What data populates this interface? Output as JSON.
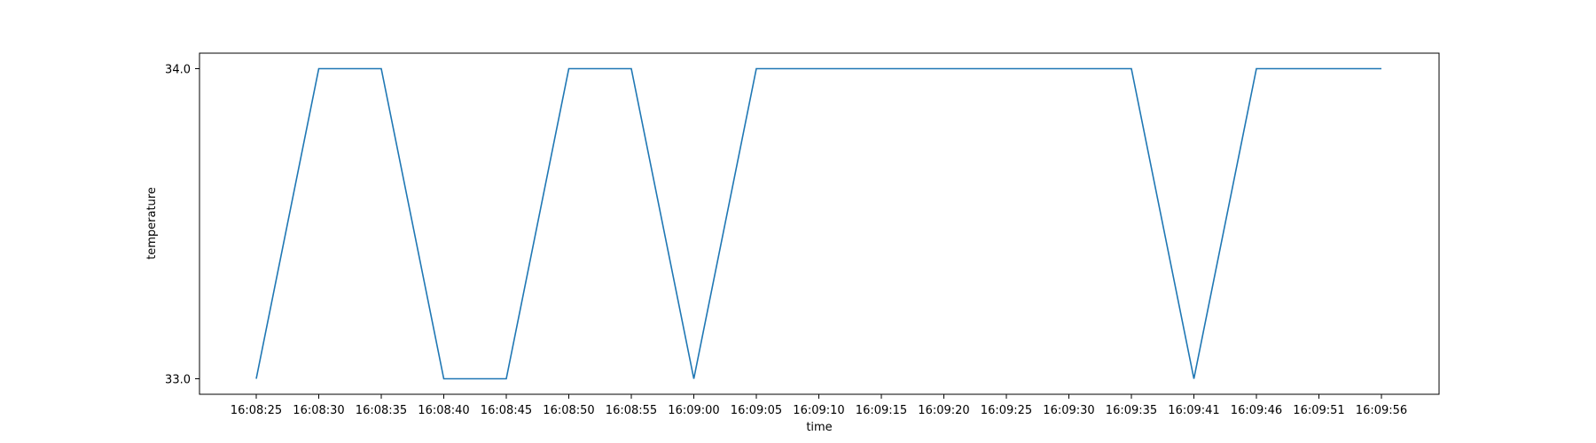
{
  "chart_data": {
    "type": "line",
    "xlabel": "time",
    "ylabel": "temperature",
    "categories": [
      "16:08:25",
      "16:08:30",
      "16:08:35",
      "16:08:40",
      "16:08:45",
      "16:08:50",
      "16:08:55",
      "16:09:00",
      "16:09:05",
      "16:09:10",
      "16:09:15",
      "16:09:20",
      "16:09:25",
      "16:09:30",
      "16:09:35",
      "16:09:41",
      "16:09:46",
      "16:09:51",
      "16:09:56"
    ],
    "series": [
      {
        "values": [
          33.0,
          34.0,
          34.0,
          33.0,
          33.0,
          34.0,
          34.0,
          33.0,
          34.0,
          34.0,
          34.0,
          34.0,
          34.0,
          34.0,
          34.0,
          33.0,
          34.0,
          34.0,
          34.0
        ],
        "color": "#1f77b4"
      }
    ],
    "yticks": [
      "33.0",
      "34.0"
    ],
    "ylim": [
      32.95,
      34.05
    ],
    "grid": false,
    "legend": false
  }
}
